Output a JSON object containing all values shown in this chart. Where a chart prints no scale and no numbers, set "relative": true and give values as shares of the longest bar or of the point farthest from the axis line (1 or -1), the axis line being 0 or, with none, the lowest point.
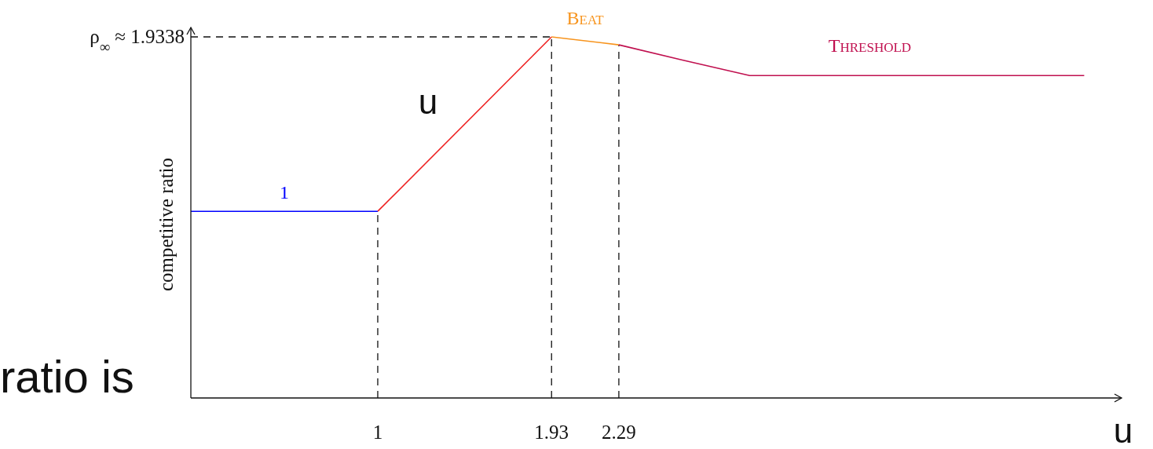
{
  "chart_data": {
    "type": "line",
    "xlabel": "u",
    "ylabel": "competitive ratio",
    "relative": true,
    "xlim": [
      0,
      4.98
    ],
    "xticks": [
      1,
      1.93,
      2.29
    ],
    "series": [
      {
        "name": "1",
        "color": "#0000ff",
        "x": [
          0,
          1
        ],
        "values": [
          0.517,
          0.517
        ]
      },
      {
        "color": "#ee2222",
        "x": [
          1,
          1.93
        ],
        "values": [
          0.517,
          1
        ]
      },
      {
        "name": "Beat",
        "color": "#f7941d",
        "x": [
          1.93,
          2.29
        ],
        "values": [
          1,
          0.978
        ]
      },
      {
        "name": "Threshold",
        "color": "#c0104f",
        "x": [
          2.29,
          2.63,
          2.99,
          4.78
        ],
        "values": [
          0.978,
          0.936,
          0.893,
          0.893
        ]
      }
    ],
    "ref_lines": [
      {
        "axis": "y",
        "value": 1,
        "line_style": "dashed",
        "label": "ρ$_{∞}$ ≈ 1.9338"
      },
      {
        "axis": "x",
        "value": 1,
        "line_style": "dashed"
      },
      {
        "axis": "x",
        "value": 1.93,
        "line_style": "dashed"
      },
      {
        "axis": "x",
        "value": 2.29,
        "line_style": "dashed"
      }
    ],
    "annotations": [
      "ratio is",
      "u"
    ],
    "line_style": "solid",
    "marker": "none"
  }
}
